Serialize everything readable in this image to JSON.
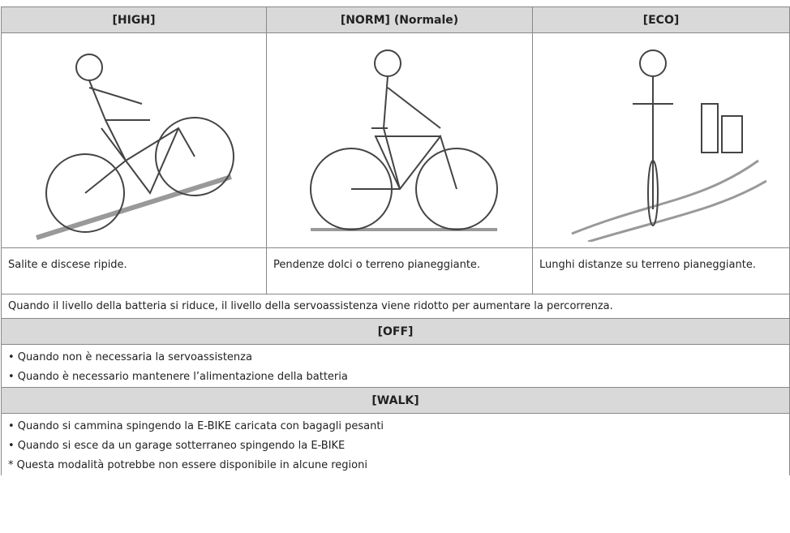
{
  "table": {
    "headers": [
      "[HIGH]",
      "[NORM] (Normale)",
      "[ECO]"
    ],
    "descriptions": [
      "Salite e discese ripide.",
      "Pendenze dolci o terreno pianeggiante.",
      "Lunghi distanze su terreno pianeggiante."
    ],
    "note": "Quando il livello della batteria si riduce, il livello della servoassistenza viene ridotto per aumentare la percorrenza.",
    "sections": [
      {
        "title": "[OFF]",
        "items": [
          "• Quando non è necessaria la servoassistenza",
          "• Quando è necessario mantenere l’alimentazione della batteria"
        ]
      },
      {
        "title": "[WALK]",
        "items": [
          "• Quando si cammina spingendo la E-BIKE caricata con bagagli pesanti",
          "• Quando si esce da un garage sotterraneo spingendo la E-BIKE",
          "* Questa modalità potrebbe non essere disponibile in alcune regioni"
        ]
      }
    ]
  }
}
